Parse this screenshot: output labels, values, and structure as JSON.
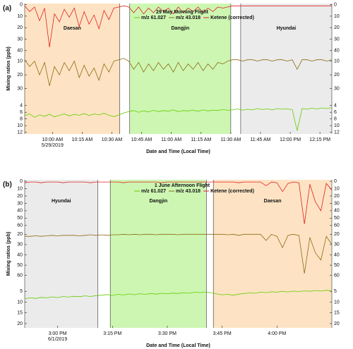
{
  "chart_data": [
    {
      "type": "line",
      "label": "(a)",
      "title": "29 May Morning Flight",
      "xlabel": "Date and Time (Local Time)",
      "ylabel": "Mixing ratios (ppb)",
      "xlim": [
        586,
        741
      ],
      "xticks": [
        {
          "value": 600,
          "label": "10:00 AM"
        },
        {
          "value": 615,
          "label": "10:15 AM"
        },
        {
          "value": 630,
          "label": "10:30 AM"
        },
        {
          "value": 645,
          "label": "10:45 AM"
        },
        {
          "value": 660,
          "label": "11:00 AM"
        },
        {
          "value": 675,
          "label": "11:15 AM"
        },
        {
          "value": 690,
          "label": "11:30 AM"
        },
        {
          "value": 705,
          "label": "11:45 AM"
        },
        {
          "value": 720,
          "label": "12:00 PM"
        },
        {
          "value": 735,
          "label": "12:15 PM"
        }
      ],
      "xdate": {
        "value": 600,
        "label": "5/29/2019"
      },
      "regions": [
        {
          "name": "Daesan",
          "start": 586,
          "end": 634,
          "color": "#fde3c3"
        },
        {
          "name": "Dangjin",
          "start": 639,
          "end": 690,
          "color": "#cdf6b2"
        },
        {
          "name": "Hyundai",
          "start": 695,
          "end": 741,
          "color": "#ebebeb"
        }
      ],
      "x": [
        586,
        588.5,
        591,
        593.5,
        596,
        598.5,
        601,
        603.5,
        606,
        608.5,
        611,
        613.5,
        616,
        618.5,
        621,
        623.5,
        626,
        628.5,
        631,
        633.5,
        636,
        638.5,
        641,
        643.5,
        646,
        648.5,
        651,
        653.5,
        656,
        658.5,
        661,
        663.5,
        666,
        668.5,
        671,
        673.5,
        676,
        678.5,
        681,
        683.5,
        686,
        688.5,
        691,
        693.5,
        696,
        698.5,
        701,
        703.5,
        706,
        708.5,
        711,
        713.5,
        716,
        718.5,
        721,
        723.5,
        726,
        728.5,
        731,
        733.5,
        736,
        738.5,
        741
      ],
      "series": [
        {
          "name": "m/z 61.027",
          "color": "#66cc00",
          "ylim": [
            3,
            12.5
          ],
          "yticks": [
            4,
            6,
            8,
            10,
            12
          ],
          "values": [
            7,
            6.5,
            7.5,
            6.8,
            7.2,
            6.6,
            7.4,
            6.9,
            6.5,
            7.1,
            6.6,
            6.9,
            6.4,
            7,
            6.5,
            6.8,
            6.3,
            6.9,
            7.3,
            6.8,
            6.2,
            5.8,
            5.5,
            6,
            5.6,
            5.9,
            5.4,
            5.8,
            5.5,
            5.7,
            5.3,
            5.8,
            5.5,
            5.6,
            5.4,
            5.7,
            5.3,
            5.6,
            5.4,
            5.5,
            5.2,
            5.4,
            5.3,
            5,
            5.4,
            5.1,
            5.3,
            4.9,
            5.2,
            5,
            5.3,
            4.9,
            5.1,
            5,
            5.2,
            11.5,
            4.9,
            5.1,
            4.8,
            5,
            4.7,
            4.9,
            4.6
          ]
        },
        {
          "name": "m/z 43.018",
          "color": "#8b6a14",
          "ylim": [
            4,
            40
          ],
          "yticks": [
            10,
            20,
            30
          ],
          "values": [
            9,
            14,
            10,
            20,
            11,
            28,
            14,
            20,
            11,
            17,
            10,
            22,
            13,
            21,
            15,
            24,
            12,
            18,
            10,
            9,
            8,
            10,
            16,
            11,
            18,
            12,
            17,
            11,
            16,
            12,
            18,
            11,
            17,
            12,
            16,
            11,
            17,
            12,
            16,
            11,
            12,
            10,
            9,
            9,
            10,
            9,
            9,
            10,
            9,
            9,
            10,
            9,
            9,
            10,
            9,
            16,
            9,
            9,
            10,
            9,
            9,
            10,
            9
          ]
        },
        {
          "name": "Ketene (corrected)",
          "color": "#e02020",
          "ylim": [
            -1,
            42
          ],
          "yticks": [
            0,
            10,
            20,
            30,
            40
          ],
          "values": [
            1,
            6,
            2,
            14,
            3,
            37,
            8,
            15,
            4,
            11,
            3,
            19,
            6,
            17,
            9,
            21,
            5,
            13,
            3,
            2,
            1,
            2,
            7,
            2,
            8,
            3,
            7,
            2,
            6,
            3,
            8,
            2,
            7,
            3,
            6,
            2,
            7,
            3,
            6,
            2,
            3,
            2,
            1,
            1,
            1,
            1,
            1,
            1,
            1,
            1,
            1,
            1,
            1,
            1,
            1,
            1,
            1,
            1,
            1,
            1,
            1,
            1,
            1
          ]
        }
      ]
    },
    {
      "type": "line",
      "label": "(b)",
      "title": "1 June Afternoon Flight",
      "xlabel": "Date and Time (Local Time)",
      "ylabel": "Mixing ratios (ppb)",
      "xlim": [
        891,
        975
      ],
      "xticks": [
        {
          "value": 900,
          "label": "3:00 PM"
        },
        {
          "value": 915,
          "label": "3:15 PM"
        },
        {
          "value": 930,
          "label": "3:30 PM"
        },
        {
          "value": 945,
          "label": "3:45 PM"
        },
        {
          "value": 960,
          "label": "4:00 PM"
        }
      ],
      "xdate": {
        "value": 900,
        "label": "6/1/2019"
      },
      "regions": [
        {
          "name": "Hyundai",
          "start": 891,
          "end": 911,
          "color": "#ebebeb"
        },
        {
          "name": "Dangjin",
          "start": 914.4,
          "end": 940.7,
          "color": "#cdf6b2"
        },
        {
          "name": "Daesan",
          "start": 942.6,
          "end": 975,
          "color": "#fde3c3"
        }
      ],
      "x": [
        891,
        892.5,
        894,
        895.5,
        897,
        898.5,
        900,
        901.5,
        903,
        904.5,
        906,
        907.5,
        909,
        910.5,
        912,
        913.5,
        915,
        916.5,
        918,
        919.5,
        921,
        922.5,
        924,
        925.5,
        927,
        928.5,
        930,
        931.5,
        933,
        934.5,
        936,
        937.5,
        939,
        940.5,
        942,
        943.5,
        945,
        946.5,
        948,
        949.5,
        951,
        952.5,
        954,
        955.5,
        957,
        958.5,
        960,
        961.5,
        963,
        964.5,
        966,
        967.5,
        969,
        970.5,
        972,
        973.5,
        975
      ],
      "series": [
        {
          "name": "m/z 61.027",
          "color": "#66cc00",
          "ylim": [
            0,
            22
          ],
          "yticks": [
            5,
            10,
            15,
            20
          ],
          "values": [
            8.5,
            8,
            8.3,
            7.8,
            8,
            7.6,
            7.9,
            7.4,
            7.7,
            7.3,
            7.5,
            7.1,
            7.4,
            7,
            6.8,
            6.5,
            6.9,
            6.4,
            6.7,
            6.2,
            6.6,
            6.1,
            6.4,
            6,
            6.3,
            5.9,
            6.1,
            5.8,
            6,
            5.6,
            5.9,
            5.4,
            5.6,
            5.3,
            5.6,
            6.2,
            6.6,
            6.4,
            6.8,
            6.3,
            6,
            5.7,
            5.9,
            5.4,
            5.6,
            5.2,
            5.4,
            5,
            5.3,
            4.9,
            5.1,
            4.8,
            5,
            4.6,
            4.9,
            4.5,
            4.7
          ]
        },
        {
          "name": "m/z 43.018",
          "color": "#8b6a14",
          "ylim": [
            15,
            65
          ],
          "yticks": [
            20,
            30,
            40,
            50,
            60
          ],
          "values": [
            22,
            22,
            21.5,
            22,
            21.5,
            21,
            21.5,
            21,
            21,
            21,
            21.5,
            21,
            20.5,
            21,
            20.5,
            21,
            20.5,
            20.5,
            20,
            20.5,
            20,
            20.5,
            20,
            20,
            20.5,
            20,
            20,
            20,
            20.5,
            20,
            20,
            20,
            20,
            20,
            20,
            20,
            20,
            20.5,
            20,
            21,
            20,
            20,
            20,
            20,
            26,
            20,
            22,
            33,
            21,
            20,
            21,
            58,
            23,
            38,
            45,
            22,
            30
          ]
        },
        {
          "name": "Ketene (corrected)",
          "color": "#e02020",
          "ylim": [
            -2,
            65
          ],
          "yticks": [
            0,
            10,
            20,
            30,
            40,
            50,
            60
          ],
          "values": [
            2,
            1,
            1,
            2,
            1,
            1,
            1,
            2,
            1,
            1,
            1,
            1,
            2,
            1,
            1,
            1,
            1,
            1,
            2,
            1,
            1,
            1,
            1,
            1,
            1,
            2,
            1,
            1,
            1,
            1,
            1,
            1,
            1,
            1,
            1,
            1,
            1,
            1,
            1,
            2,
            1,
            1,
            1,
            1,
            6,
            1,
            2,
            14,
            3,
            1,
            2,
            58,
            4,
            28,
            40,
            3,
            12
          ]
        }
      ]
    }
  ]
}
